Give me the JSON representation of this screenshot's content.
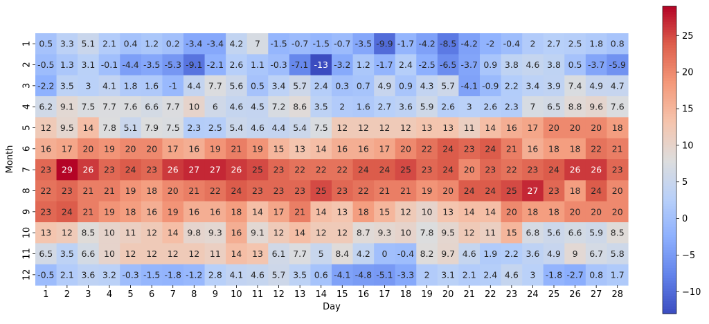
{
  "chart_data": {
    "type": "heatmap",
    "xlabel": "Day",
    "ylabel": "Month",
    "x": [
      1,
      2,
      3,
      4,
      5,
      6,
      7,
      8,
      9,
      10,
      11,
      12,
      13,
      14,
      15,
      16,
      17,
      18,
      19,
      20,
      21,
      22,
      23,
      24,
      25,
      26,
      27,
      28
    ],
    "y": [
      1,
      2,
      3,
      4,
      5,
      6,
      7,
      8,
      9,
      10,
      11,
      12
    ],
    "values": [
      [
        0.5,
        3.3,
        5.1,
        2.1,
        0.4,
        1.2,
        0.2,
        -3.4,
        -3.4,
        4.2,
        7,
        -1.5,
        -0.7,
        -1.5,
        -0.7,
        -3.5,
        -9.9,
        -1.7,
        -4.2,
        -8.5,
        -4.2,
        -2,
        -0.4,
        2,
        2.7,
        2.5,
        1.8,
        0.8
      ],
      [
        -0.5,
        1.3,
        3.1,
        -0.1,
        -4.4,
        -3.5,
        -5.3,
        -9.1,
        -2.1,
        2.6,
        1.1,
        -0.3,
        -7.1,
        -13,
        -3.2,
        1.2,
        -1.7,
        2.4,
        -2.5,
        -6.5,
        -3.7,
        0.9,
        3.8,
        4.6,
        3.8,
        0.5,
        -3.7,
        -5.9
      ],
      [
        -2.2,
        3.5,
        3,
        4.1,
        1.8,
        1.6,
        -1,
        4.4,
        7.7,
        5.6,
        0.5,
        3.4,
        5.7,
        2.4,
        0.3,
        0.7,
        4.9,
        0.9,
        4.3,
        5.7,
        -4.1,
        -0.9,
        2.2,
        3.4,
        3.9,
        7.4,
        4.9,
        4.7
      ],
      [
        6.2,
        9.1,
        7.5,
        7.7,
        7.6,
        6.6,
        7.7,
        10,
        6,
        4.6,
        4.5,
        7.2,
        8.6,
        3.5,
        2,
        1.6,
        2.7,
        3.6,
        5.9,
        2.6,
        3,
        2.6,
        2.3,
        7,
        6.5,
        8.8,
        9.6,
        7.6
      ],
      [
        12,
        9.5,
        14,
        7.8,
        5.1,
        7.9,
        7.5,
        2.3,
        2.5,
        5.4,
        4.6,
        4.4,
        5.4,
        7.5,
        12,
        12,
        12,
        12,
        13,
        13,
        11,
        14,
        16,
        17,
        20,
        20,
        20,
        18
      ],
      [
        16,
        17,
        20,
        19,
        20,
        20,
        17,
        16,
        19,
        21,
        19,
        15,
        13,
        14,
        16,
        16,
        17,
        20,
        22,
        24,
        23,
        24,
        21,
        16,
        18,
        18,
        22,
        21
      ],
      [
        23,
        29,
        26,
        23,
        24,
        23,
        26,
        27,
        27,
        26,
        25,
        23,
        22,
        22,
        22,
        24,
        24,
        25,
        23,
        24,
        20,
        23,
        22,
        23,
        24,
        26,
        26,
        23
      ],
      [
        22,
        23,
        21,
        21,
        19,
        18,
        20,
        21,
        22,
        24,
        23,
        23,
        23,
        25,
        23,
        22,
        21,
        21,
        19,
        20,
        24,
        24,
        25,
        27,
        23,
        18,
        24,
        20
      ],
      [
        23,
        24,
        21,
        19,
        18,
        16,
        19,
        16,
        16,
        18,
        14,
        17,
        21,
        14,
        13,
        18,
        15,
        12,
        10,
        13,
        14,
        14,
        20,
        18,
        18,
        20,
        20,
        20
      ],
      [
        13,
        12,
        8.5,
        10,
        11,
        12,
        14,
        9.8,
        9.3,
        16,
        9.1,
        12,
        14,
        12,
        12,
        8.7,
        9.3,
        10,
        7.8,
        9.5,
        12,
        11,
        15,
        6.8,
        5.6,
        6.6,
        5.9,
        8.5
      ],
      [
        6.5,
        3.5,
        6.6,
        10,
        12,
        12,
        12,
        12,
        11,
        14,
        13,
        6.1,
        7.7,
        5,
        8.4,
        4.2,
        0,
        -0.4,
        8.2,
        9.7,
        4.6,
        1.9,
        2.2,
        3.6,
        4.9,
        9,
        6.7,
        5.8
      ],
      [
        -0.5,
        2.1,
        3.6,
        3.2,
        -0.3,
        -1.5,
        -1.8,
        -1.2,
        2.8,
        4.1,
        4.6,
        5.7,
        3.5,
        0.6,
        -4.1,
        -4.8,
        -5.1,
        -3.3,
        2,
        3.1,
        2.1,
        2.4,
        4.6,
        3,
        -1.8,
        -2.7,
        0.8,
        1.7
      ]
    ],
    "colormap": "coolwarm",
    "vmin": -13,
    "vmax": 29,
    "colorbar_ticks": [
      -10,
      -5,
      0,
      5,
      10,
      15,
      20,
      25
    ],
    "annotate": true,
    "grid": false
  }
}
